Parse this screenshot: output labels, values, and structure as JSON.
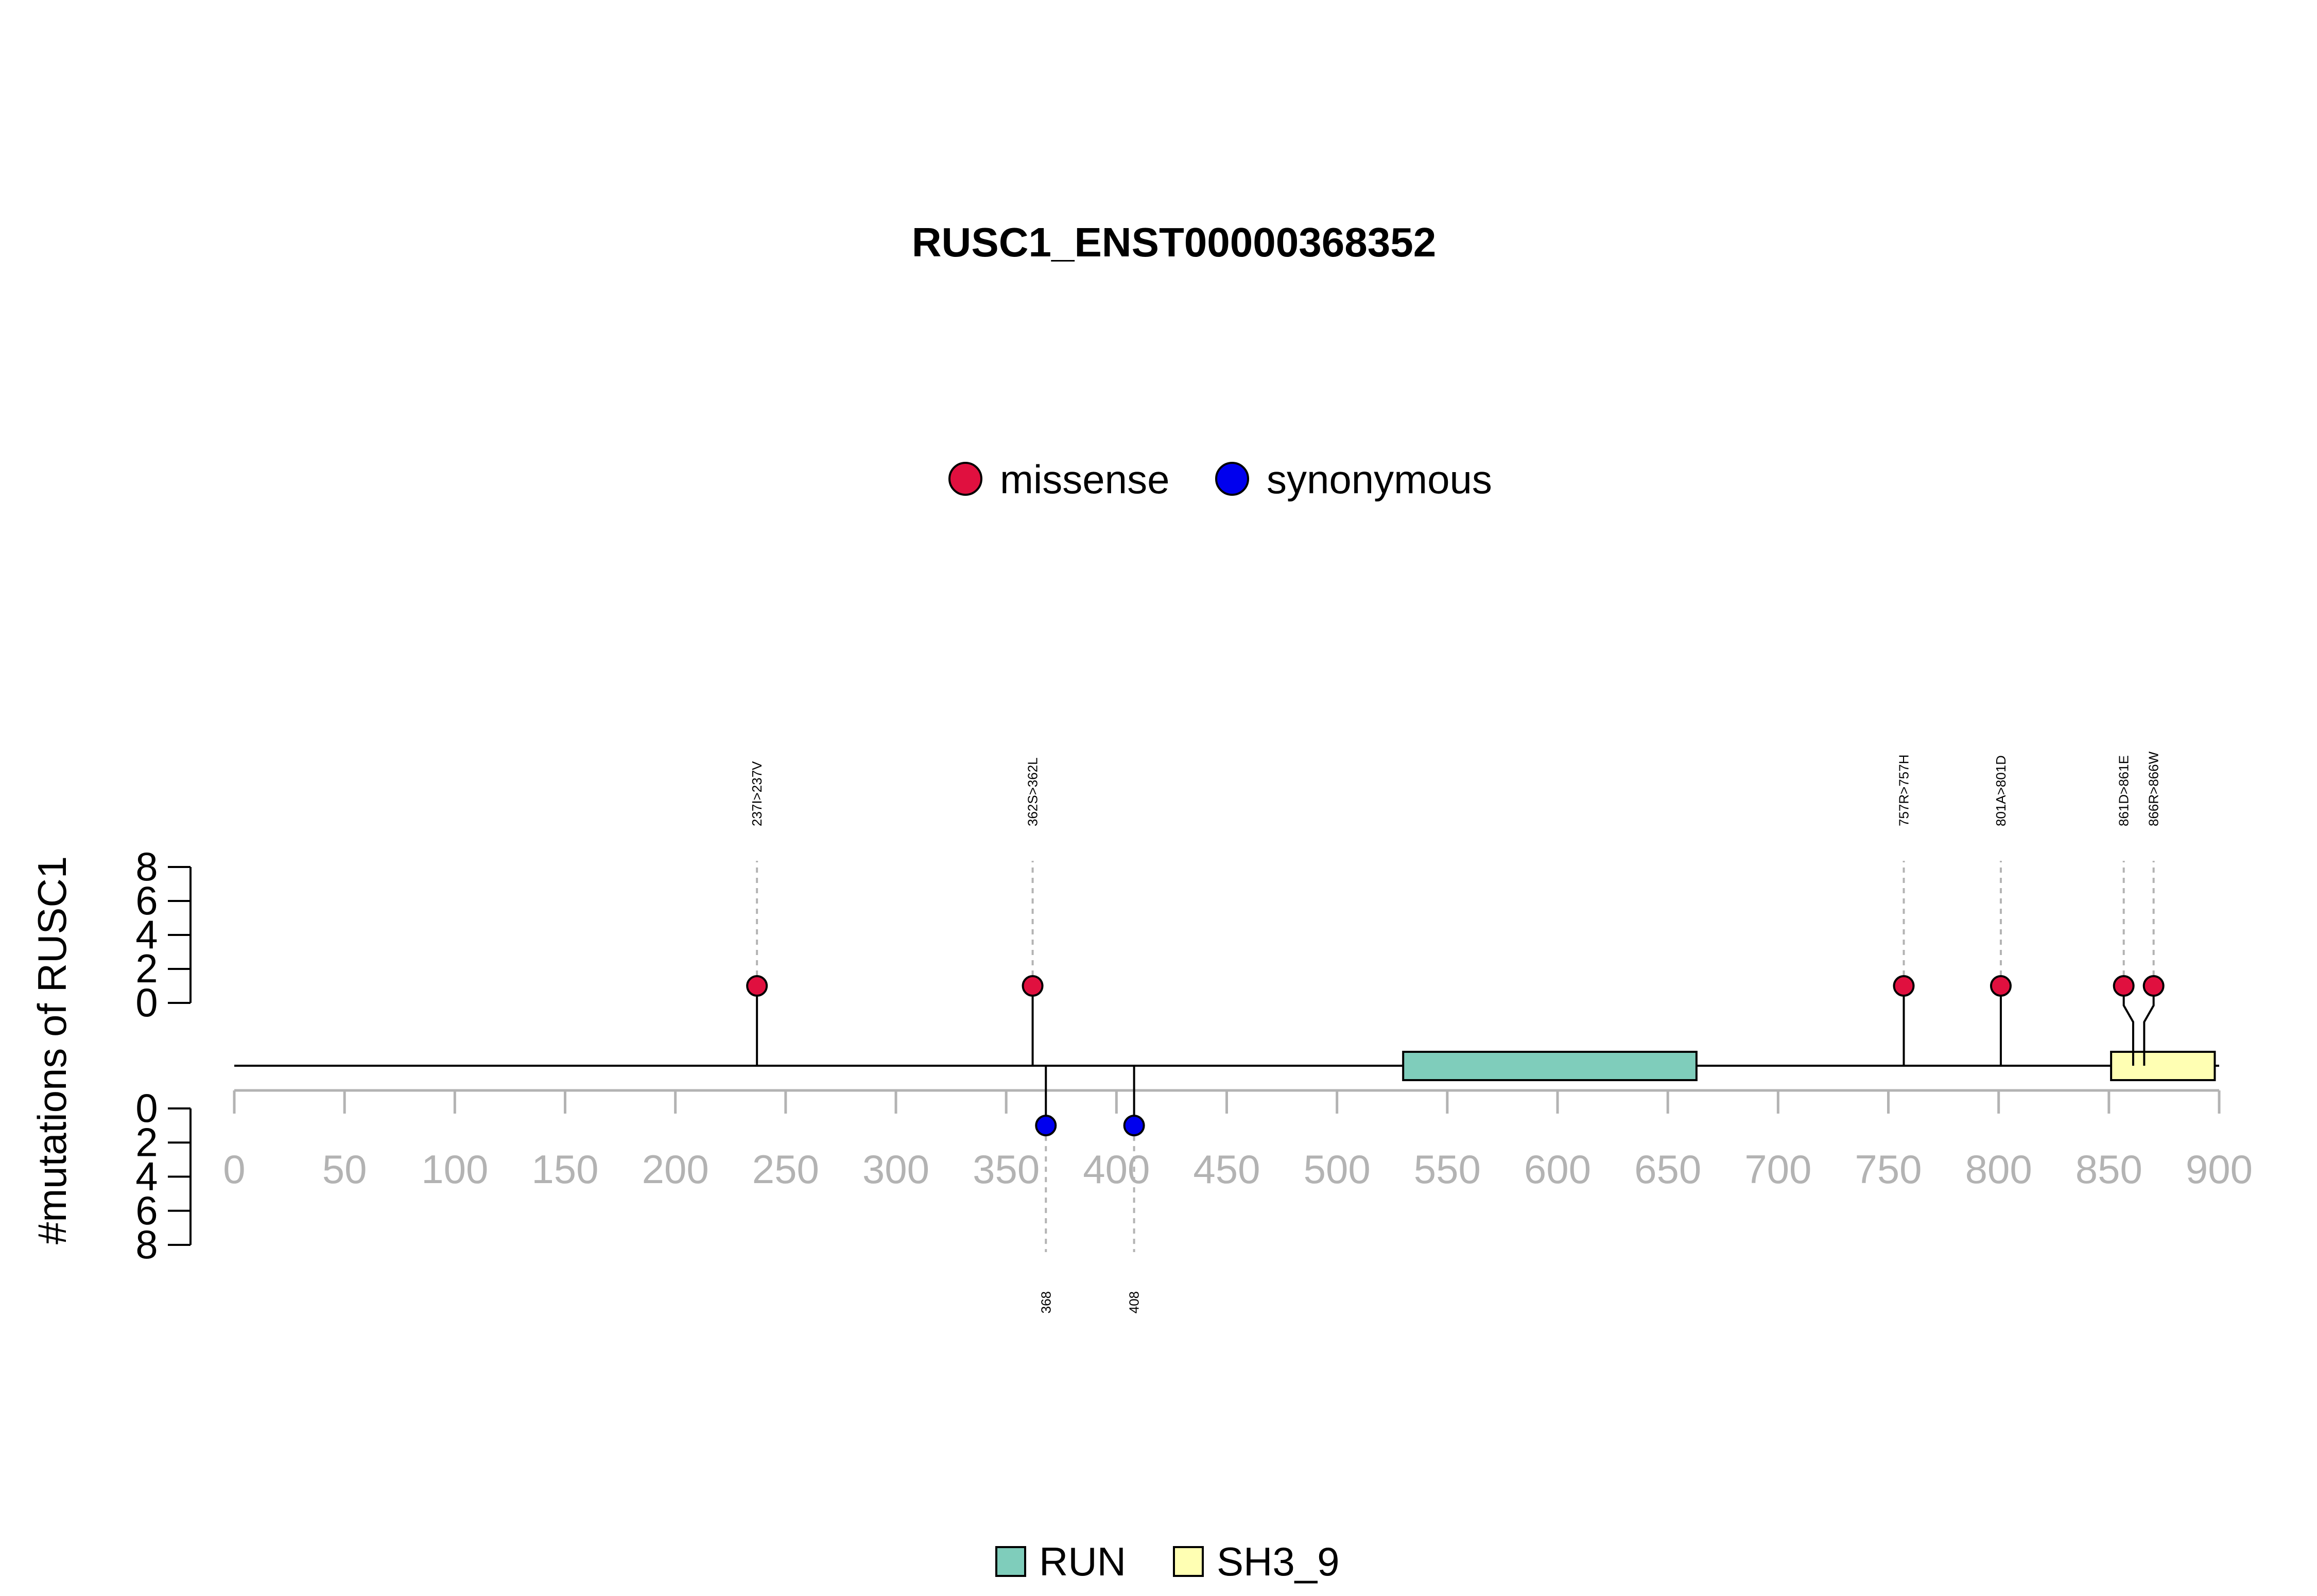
{
  "chart_data": {
    "type": "lollipop",
    "title": "RUSC1_ENST00000368352",
    "ylabel": "#mutations of RUSC1",
    "xlim": [
      0,
      900
    ],
    "x_ticks": [
      0,
      50,
      100,
      150,
      200,
      250,
      300,
      350,
      400,
      450,
      500,
      550,
      600,
      650,
      700,
      750,
      800,
      850,
      900
    ],
    "y_ticks": [
      0,
      2,
      4,
      6,
      8
    ],
    "legend_top": [
      {
        "name": "missense",
        "color": "#e0103f"
      },
      {
        "name": "synonymous",
        "color": "#0000ee"
      }
    ],
    "mutations_up": [
      {
        "pos": 237,
        "label": "237I>237V",
        "type": "missense",
        "count": 1
      },
      {
        "pos": 362,
        "label": "362S>362L",
        "type": "missense",
        "count": 1
      },
      {
        "pos": 757,
        "label": "757R>757H",
        "type": "missense",
        "count": 1
      },
      {
        "pos": 801,
        "label": "801A>801D",
        "type": "missense",
        "count": 1
      },
      {
        "pos": 861,
        "label": "861D>861E",
        "type": "missense",
        "count": 1
      },
      {
        "pos": 866,
        "label": "866R>866W",
        "type": "missense",
        "count": 1
      }
    ],
    "mutations_down": [
      {
        "pos": 368,
        "label": "368",
        "type": "synonymous",
        "count": 1
      },
      {
        "pos": 408,
        "label": "408",
        "type": "synonymous",
        "count": 1
      }
    ],
    "domains": [
      {
        "name": "RUN",
        "start": 530,
        "end": 663,
        "color": "#7fcdbb"
      },
      {
        "name": "SH3_9",
        "start": 851,
        "end": 898,
        "color": "#ffffb3"
      }
    ]
  }
}
